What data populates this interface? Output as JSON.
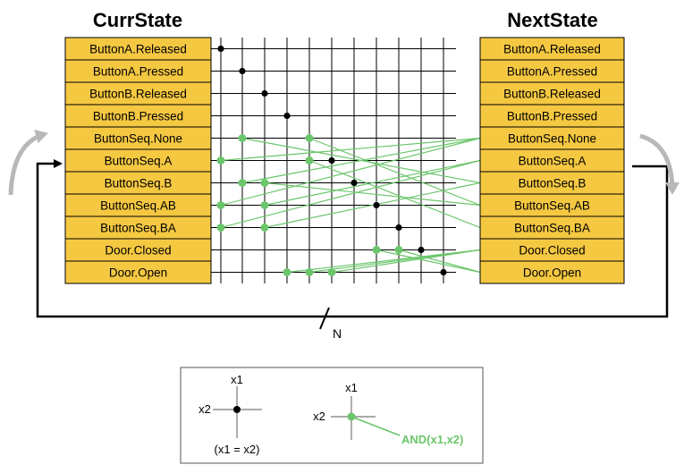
{
  "curr_title": "CurrState",
  "next_title": "NextState",
  "states": [
    "ButtonA.Released",
    "ButtonA.Pressed",
    "ButtonB.Released",
    "ButtonB.Pressed",
    "ButtonSeq.None",
    "ButtonSeq.A",
    "ButtonSeq.B",
    "ButtonSeq.AB",
    "ButtonSeq.BA",
    "Door.Closed",
    "Door.Open"
  ],
  "feedback_label": "N",
  "legend": {
    "x1": "x1",
    "x2": "x2",
    "equality_caption": "(x1 = x2)",
    "and_caption": "AND(x1,x2)"
  },
  "colors": {
    "state_fill": "#f5c842",
    "grid": "#000000",
    "green": "#6bc66b",
    "arrow_gray": "#b8b8b8"
  }
}
